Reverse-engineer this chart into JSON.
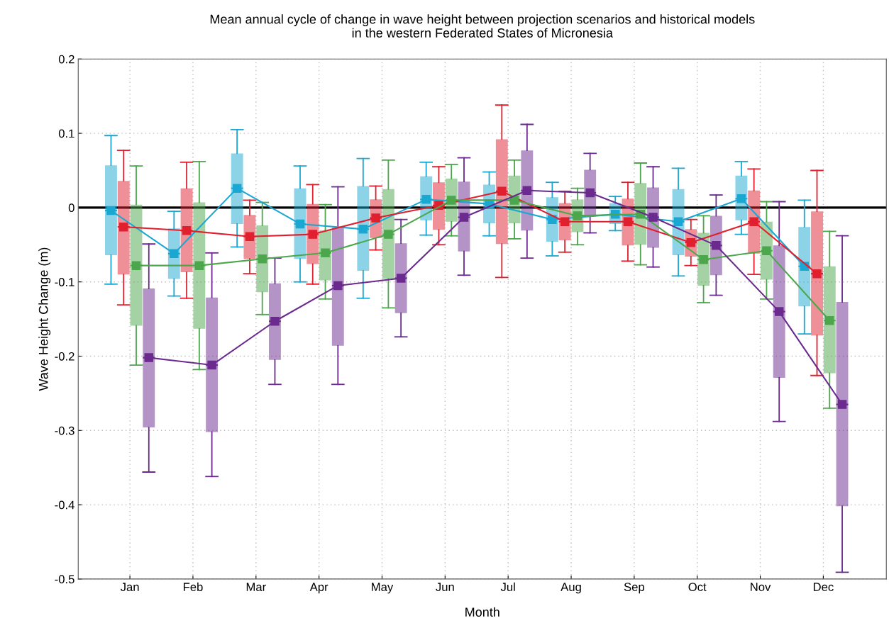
{
  "chart_data": {
    "type": "box",
    "title": "Mean annual cycle of change in wave height between projection scenarios and historical models\nin the western Federated States of Micronesia",
    "xlabel": "Month",
    "ylabel": "Wave Height Change (m)",
    "categories": [
      "Jan",
      "Feb",
      "Mar",
      "Apr",
      "May",
      "Jun",
      "Jul",
      "Aug",
      "Sep",
      "Oct",
      "Nov",
      "Dec"
    ],
    "ylim": [
      -0.5,
      0.2
    ],
    "yticks": [
      -0.5,
      -0.4,
      -0.3,
      -0.2,
      -0.1,
      0,
      0.1,
      0.2
    ],
    "grid": true,
    "marker": "square",
    "line_style": "solid",
    "ref_lines": [
      {
        "axis": "y",
        "value": 0,
        "color": "#000000"
      }
    ],
    "series": [
      {
        "type": "line",
        "color": "#1aa7d1",
        "values": [
          -0.004,
          -0.062,
          0.026,
          -0.022,
          -0.029,
          0.011,
          0.005,
          -0.016,
          -0.009,
          -0.019,
          0.012,
          -0.079
        ]
      },
      {
        "type": "line",
        "color": "#e0202f",
        "values": [
          -0.026,
          -0.031,
          -0.039,
          -0.036,
          -0.014,
          0.003,
          0.022,
          -0.019,
          -0.019,
          -0.047,
          -0.019,
          -0.089
        ]
      },
      {
        "type": "line",
        "color": "#4ca64c",
        "values": [
          -0.078,
          -0.078,
          -0.069,
          -0.061,
          -0.036,
          0.01,
          0.01,
          -0.011,
          -0.009,
          -0.07,
          -0.058,
          -0.152
        ]
      },
      {
        "type": "line",
        "color": "#6a2a8e",
        "values": [
          -0.202,
          -0.212,
          -0.153,
          -0.105,
          -0.095,
          -0.013,
          0.023,
          0.02,
          -0.013,
          -0.051,
          -0.14,
          -0.265
        ]
      },
      {
        "color": "#1aa7d1",
        "boxes": [
          {
            "low": -0.103,
            "q1": -0.064,
            "median": -0.004,
            "q3": 0.057,
            "high": 0.097
          },
          {
            "low": -0.119,
            "q1": -0.096,
            "median": -0.062,
            "q3": -0.028,
            "high": -0.005
          },
          {
            "low": -0.053,
            "q1": -0.022,
            "median": 0.026,
            "q3": 0.073,
            "high": 0.105
          },
          {
            "low": -0.1,
            "q1": -0.069,
            "median": -0.022,
            "q3": 0.026,
            "high": 0.056
          },
          {
            "low": -0.122,
            "q1": -0.085,
            "median": -0.029,
            "q3": 0.029,
            "high": 0.066
          },
          {
            "low": -0.037,
            "q1": -0.017,
            "median": 0.011,
            "q3": 0.042,
            "high": 0.061
          },
          {
            "low": -0.038,
            "q1": -0.021,
            "median": 0.005,
            "q3": 0.031,
            "high": 0.048
          },
          {
            "low": -0.065,
            "q1": -0.046,
            "median": -0.016,
            "q3": 0.014,
            "high": 0.034
          },
          {
            "low": -0.031,
            "q1": -0.022,
            "median": -0.009,
            "q3": 0.006,
            "high": 0.015
          },
          {
            "low": -0.092,
            "q1": -0.064,
            "median": -0.019,
            "q3": 0.025,
            "high": 0.053
          },
          {
            "low": -0.036,
            "q1": -0.017,
            "median": 0.012,
            "q3": 0.043,
            "high": 0.062
          },
          {
            "low": -0.17,
            "q1": -0.133,
            "median": -0.079,
            "q3": -0.026,
            "high": 0.01
          }
        ]
      },
      {
        "color": "#e0202f",
        "boxes": [
          {
            "low": -0.131,
            "q1": -0.09,
            "median": -0.026,
            "q3": 0.036,
            "high": 0.077
          },
          {
            "low": -0.122,
            "q1": -0.087,
            "median": -0.031,
            "q3": 0.026,
            "high": 0.061
          },
          {
            "low": -0.089,
            "q1": -0.069,
            "median": -0.039,
            "q3": -0.01,
            "high": 0.01
          },
          {
            "low": -0.103,
            "q1": -0.076,
            "median": -0.036,
            "q3": 0.005,
            "high": 0.031
          },
          {
            "low": -0.057,
            "q1": -0.041,
            "median": -0.014,
            "q3": 0.011,
            "high": 0.029
          },
          {
            "low": -0.05,
            "q1": -0.03,
            "median": 0.003,
            "q3": 0.034,
            "high": 0.055
          },
          {
            "low": -0.094,
            "q1": -0.049,
            "median": 0.022,
            "q3": 0.092,
            "high": 0.138
          },
          {
            "low": -0.06,
            "q1": -0.044,
            "median": -0.019,
            "q3": 0.006,
            "high": 0.022
          },
          {
            "low": -0.072,
            "q1": -0.051,
            "median": -0.019,
            "q3": 0.012,
            "high": 0.034
          },
          {
            "low": -0.078,
            "q1": -0.066,
            "median": -0.047,
            "q3": -0.029,
            "high": -0.016
          },
          {
            "low": -0.09,
            "q1": -0.062,
            "median": -0.019,
            "q3": 0.023,
            "high": 0.052
          },
          {
            "low": -0.226,
            "q1": -0.172,
            "median": -0.089,
            "q3": -0.005,
            "high": 0.05
          }
        ]
      },
      {
        "color": "#4ca64c",
        "boxes": [
          {
            "low": -0.212,
            "q1": -0.159,
            "median": -0.078,
            "q3": 0.004,
            "high": 0.056
          },
          {
            "low": -0.218,
            "q1": -0.163,
            "median": -0.078,
            "q3": 0.007,
            "high": 0.062
          },
          {
            "low": -0.144,
            "q1": -0.114,
            "median": -0.069,
            "q3": -0.024,
            "high": 0.007
          },
          {
            "low": -0.123,
            "q1": -0.098,
            "median": -0.061,
            "q3": -0.031,
            "high": 0.004
          },
          {
            "low": -0.135,
            "q1": -0.096,
            "median": -0.036,
            "q3": 0.025,
            "high": 0.064
          },
          {
            "low": -0.038,
            "q1": -0.019,
            "median": 0.01,
            "q3": 0.039,
            "high": 0.058
          },
          {
            "low": -0.042,
            "q1": -0.021,
            "median": 0.01,
            "q3": 0.043,
            "high": 0.064
          },
          {
            "low": -0.05,
            "q1": -0.033,
            "median": -0.011,
            "q3": 0.011,
            "high": 0.026
          },
          {
            "low": -0.077,
            "q1": -0.05,
            "median": -0.009,
            "q3": 0.033,
            "high": 0.06
          },
          {
            "low": -0.128,
            "q1": -0.105,
            "median": -0.07,
            "q3": -0.034,
            "high": -0.011
          },
          {
            "low": -0.123,
            "q1": -0.097,
            "median": -0.058,
            "q3": -0.019,
            "high": 0.008
          },
          {
            "low": -0.27,
            "q1": -0.223,
            "median": -0.152,
            "q3": -0.079,
            "high": -0.032
          }
        ]
      },
      {
        "color": "#6a2a8e",
        "boxes": [
          {
            "low": -0.356,
            "q1": -0.296,
            "median": -0.202,
            "q3": -0.109,
            "high": -0.049
          },
          {
            "low": -0.362,
            "q1": -0.302,
            "median": -0.212,
            "q3": -0.121,
            "high": -0.061
          },
          {
            "low": -0.238,
            "q1": -0.205,
            "median": -0.153,
            "q3": -0.102,
            "high": -0.068
          },
          {
            "low": -0.238,
            "q1": -0.186,
            "median": -0.105,
            "q3": -0.027,
            "high": 0.028
          },
          {
            "low": -0.174,
            "q1": -0.142,
            "median": -0.095,
            "q3": -0.048,
            "high": -0.016
          },
          {
            "low": -0.091,
            "q1": -0.059,
            "median": -0.013,
            "q3": 0.035,
            "high": 0.067
          },
          {
            "low": -0.068,
            "q1": -0.031,
            "median": 0.023,
            "q3": 0.077,
            "high": 0.112
          },
          {
            "low": -0.034,
            "q1": -0.012,
            "median": 0.02,
            "q3": 0.051,
            "high": 0.073
          },
          {
            "low": -0.08,
            "q1": -0.054,
            "median": -0.013,
            "q3": 0.027,
            "high": 0.055
          },
          {
            "low": -0.118,
            "q1": -0.091,
            "median": -0.051,
            "q3": -0.011,
            "high": 0.017
          },
          {
            "low": -0.288,
            "q1": -0.229,
            "median": -0.14,
            "q3": -0.051,
            "high": 0.008
          },
          {
            "low": -0.491,
            "q1": -0.402,
            "median": -0.265,
            "q3": -0.127,
            "high": -0.038
          }
        ]
      }
    ]
  }
}
